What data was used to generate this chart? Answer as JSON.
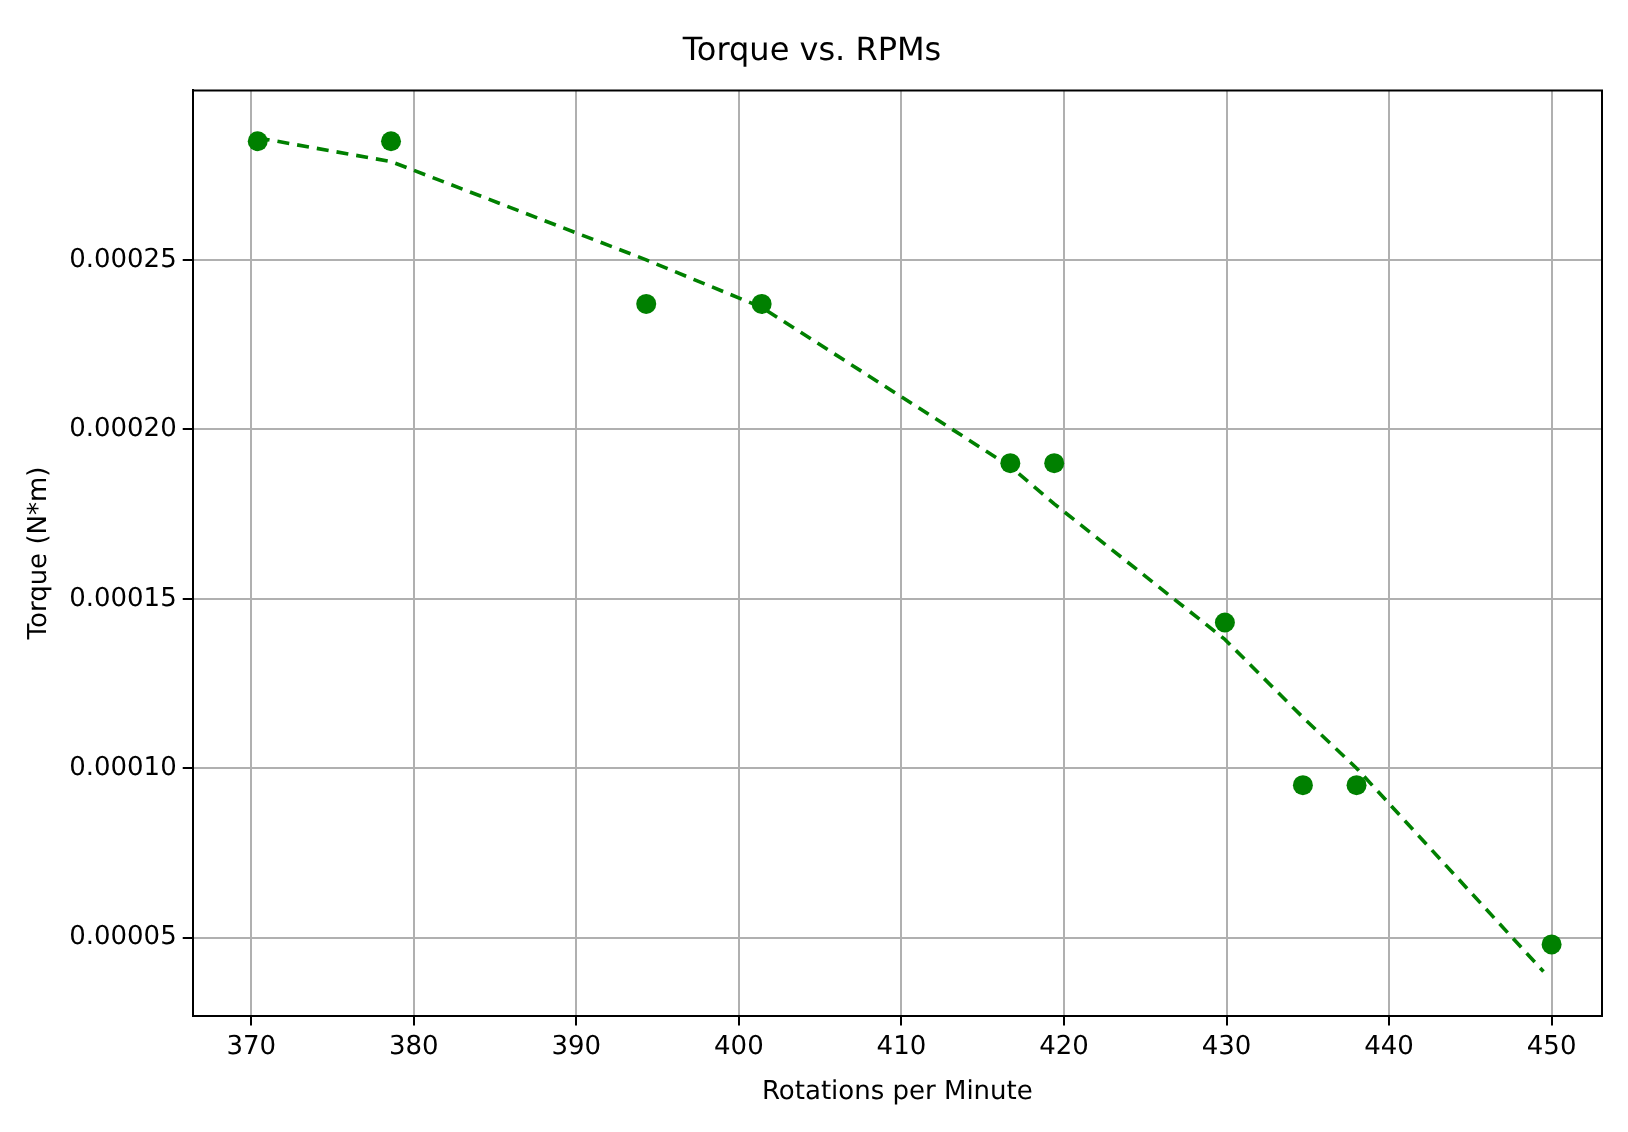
{
  "chart_data": {
    "type": "scatter",
    "title": "Torque vs. RPMs",
    "xlabel": "Rotations per Minute",
    "ylabel": "Torque (N*m)",
    "series": [
      {
        "type": "scatter",
        "color": "#008000",
        "marker": "circle",
        "x": [
          370.4,
          378.6,
          394.3,
          401.4,
          416.7,
          419.4,
          429.9,
          434.7,
          438.0,
          450.0
        ],
        "values": [
          0.000285,
          0.000285,
          0.000237,
          0.000237,
          0.00019,
          0.00019,
          0.000143,
          9.5e-05,
          9.5e-05,
          4.8e-05
        ]
      },
      {
        "type": "line",
        "color": "#008000",
        "line_style": "dashed",
        "marker": "none",
        "x": [
          370.4,
          378.6,
          394.3,
          401.4,
          416.7,
          419.4,
          429.9,
          434.7,
          438.0,
          449.5
        ],
        "values": [
          0.000286,
          0.000279,
          0.00025,
          0.000236,
          0.000189,
          0.000178,
          0.000138,
          0.000115,
          0.0001,
          4e-05
        ]
      }
    ],
    "xlim": [
      366.4,
      453.1
    ],
    "xticks": [
      370,
      380,
      390,
      400,
      410,
      420,
      430,
      440,
      450
    ],
    "ylim": [
      2.7e-05,
      0.0003
    ],
    "yticks": [
      {
        "value": 5e-05,
        "label": "0.00005"
      },
      {
        "value": 0.0001,
        "label": "0.00010"
      },
      {
        "value": 0.00015,
        "label": "0.00015"
      },
      {
        "value": 0.0002,
        "label": "0.00020"
      },
      {
        "value": 0.00025,
        "label": "0.00025"
      }
    ],
    "grid": true,
    "legend": false
  }
}
